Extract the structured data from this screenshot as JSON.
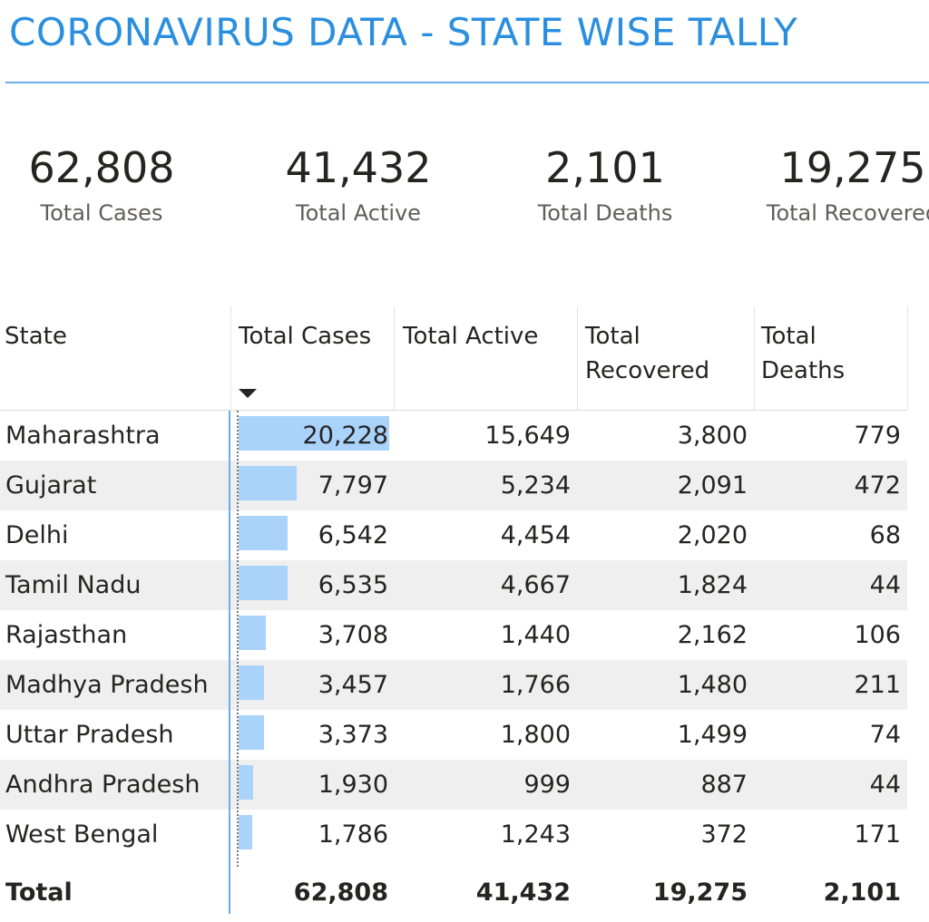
{
  "title": "CORONAVIRUS DATA - STATE WISE TALLY",
  "kpis": [
    {
      "value": "62,808",
      "label": "Total Cases"
    },
    {
      "value": "41,432",
      "label": "Total Active"
    },
    {
      "value": "2,101",
      "label": "Total Deaths"
    },
    {
      "value": "19,275",
      "label": "Total Recovered"
    }
  ],
  "table": {
    "headers": {
      "state": "State",
      "total_cases": "Total Cases",
      "total_active": "Total Active",
      "total_recovered_1": "Total",
      "total_recovered_2": "Recovered",
      "total_deaths_1": "Total",
      "total_deaths_2": "Deaths"
    },
    "sort": {
      "column": "Total Cases",
      "direction": "descending"
    },
    "bar_color": "#a9d3fb",
    "rows": [
      {
        "state": "Maharashtra",
        "cases": "20,228",
        "cases_num": 20228,
        "active": "15,649",
        "recovered": "3,800",
        "deaths": "779"
      },
      {
        "state": "Gujarat",
        "cases": "7,797",
        "cases_num": 7797,
        "active": "5,234",
        "recovered": "2,091",
        "deaths": "472"
      },
      {
        "state": "Delhi",
        "cases": "6,542",
        "cases_num": 6542,
        "active": "4,454",
        "recovered": "2,020",
        "deaths": "68"
      },
      {
        "state": "Tamil Nadu",
        "cases": "6,535",
        "cases_num": 6535,
        "active": "4,667",
        "recovered": "1,824",
        "deaths": "44"
      },
      {
        "state": "Rajasthan",
        "cases": "3,708",
        "cases_num": 3708,
        "active": "1,440",
        "recovered": "2,162",
        "deaths": "106"
      },
      {
        "state": "Madhya Pradesh",
        "cases": "3,457",
        "cases_num": 3457,
        "active": "1,766",
        "recovered": "1,480",
        "deaths": "211"
      },
      {
        "state": "Uttar Pradesh",
        "cases": "3,373",
        "cases_num": 3373,
        "active": "1,800",
        "recovered": "1,499",
        "deaths": "74"
      },
      {
        "state": "Andhra Pradesh",
        "cases": "1,930",
        "cases_num": 1930,
        "active": "999",
        "recovered": "887",
        "deaths": "44"
      },
      {
        "state": "West Bengal",
        "cases": "1,786",
        "cases_num": 1786,
        "active": "1,243",
        "recovered": "372",
        "deaths": "171"
      }
    ],
    "total": {
      "label": "Total",
      "cases": "62,808",
      "active": "41,432",
      "recovered": "19,275",
      "deaths": "2,101"
    }
  }
}
